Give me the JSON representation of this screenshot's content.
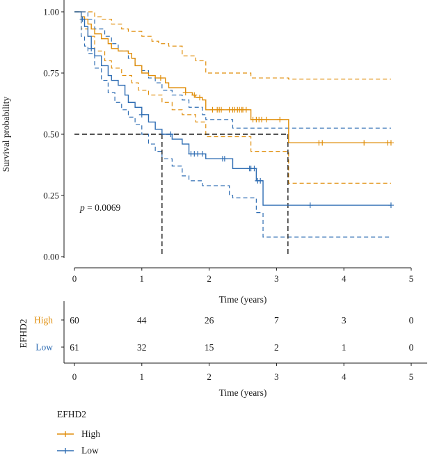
{
  "chart_data": {
    "type": "line",
    "subtype": "kaplan-meier",
    "title": "",
    "xlabel": "Time (years)",
    "ylabel": "Survival probability",
    "xlim": [
      0,
      5
    ],
    "ylim": [
      0,
      1
    ],
    "xticks": [
      "0",
      "1",
      "2",
      "3",
      "4",
      "5"
    ],
    "yticks": [
      "0.00",
      "0.25",
      "0.50",
      "0.75",
      "1.00"
    ],
    "pvalue_prefix": "p",
    "pvalue_text": " = 0.0069",
    "median_line": {
      "y": 0.5,
      "medians": [
        1.3,
        3.17
      ]
    },
    "series": [
      {
        "name": "High",
        "color": "#E08E0B",
        "steps": [
          [
            0,
            1.0
          ],
          [
            0.1,
            0.98
          ],
          [
            0.15,
            0.97
          ],
          [
            0.2,
            0.95
          ],
          [
            0.25,
            0.93
          ],
          [
            0.3,
            0.91
          ],
          [
            0.4,
            0.89
          ],
          [
            0.5,
            0.87
          ],
          [
            0.55,
            0.85
          ],
          [
            0.65,
            0.84
          ],
          [
            0.8,
            0.83
          ],
          [
            0.85,
            0.81
          ],
          [
            0.9,
            0.78
          ],
          [
            1.0,
            0.75
          ],
          [
            1.1,
            0.74
          ],
          [
            1.2,
            0.73
          ],
          [
            1.35,
            0.71
          ],
          [
            1.4,
            0.69
          ],
          [
            1.6,
            0.69
          ],
          [
            1.65,
            0.67
          ],
          [
            1.75,
            0.66
          ],
          [
            1.8,
            0.65
          ],
          [
            1.9,
            0.64
          ],
          [
            1.95,
            0.6
          ],
          [
            2.6,
            0.6
          ],
          [
            2.62,
            0.56
          ],
          [
            3.17,
            0.56
          ],
          [
            3.18,
            0.465
          ],
          [
            4.7,
            0.465
          ]
        ],
        "censor": [
          1.28,
          1.65,
          1.78,
          1.86,
          2.05,
          2.12,
          2.15,
          2.18,
          2.3,
          2.35,
          2.38,
          2.42,
          2.45,
          2.48,
          2.5,
          2.55,
          2.65,
          2.7,
          2.74,
          2.78,
          2.85,
          3.05,
          3.63,
          3.68,
          4.3,
          4.65,
          4.7
        ],
        "upper": [
          [
            0,
            1.0
          ],
          [
            0.1,
            1.0
          ],
          [
            0.25,
            1.0
          ],
          [
            0.3,
            0.98
          ],
          [
            0.4,
            0.97
          ],
          [
            0.55,
            0.95
          ],
          [
            0.7,
            0.93
          ],
          [
            0.8,
            0.92
          ],
          [
            1.0,
            0.9
          ],
          [
            1.15,
            0.88
          ],
          [
            1.25,
            0.87
          ],
          [
            1.4,
            0.86
          ],
          [
            1.6,
            0.82
          ],
          [
            1.8,
            0.8
          ],
          [
            1.95,
            0.75
          ],
          [
            2.6,
            0.75
          ],
          [
            2.62,
            0.73
          ],
          [
            3.17,
            0.73
          ],
          [
            3.18,
            0.725
          ],
          [
            4.7,
            0.725
          ]
        ],
        "lower": [
          [
            0,
            1.0
          ],
          [
            0.1,
            0.93
          ],
          [
            0.2,
            0.9
          ],
          [
            0.3,
            0.84
          ],
          [
            0.45,
            0.8
          ],
          [
            0.55,
            0.77
          ],
          [
            0.7,
            0.74
          ],
          [
            0.85,
            0.71
          ],
          [
            0.95,
            0.68
          ],
          [
            1.1,
            0.66
          ],
          [
            1.3,
            0.63
          ],
          [
            1.45,
            0.6
          ],
          [
            1.6,
            0.58
          ],
          [
            1.8,
            0.55
          ],
          [
            1.95,
            0.49
          ],
          [
            2.6,
            0.49
          ],
          [
            2.62,
            0.43
          ],
          [
            3.17,
            0.43
          ],
          [
            3.18,
            0.3
          ],
          [
            4.7,
            0.3
          ]
        ]
      },
      {
        "name": "Low",
        "color": "#2F6DB3",
        "steps": [
          [
            0,
            1.0
          ],
          [
            0.1,
            0.97
          ],
          [
            0.15,
            0.94
          ],
          [
            0.2,
            0.9
          ],
          [
            0.25,
            0.85
          ],
          [
            0.3,
            0.82
          ],
          [
            0.4,
            0.78
          ],
          [
            0.5,
            0.74
          ],
          [
            0.55,
            0.72
          ],
          [
            0.65,
            0.7
          ],
          [
            0.75,
            0.66
          ],
          [
            0.8,
            0.63
          ],
          [
            0.9,
            0.61
          ],
          [
            1.0,
            0.58
          ],
          [
            1.1,
            0.55
          ],
          [
            1.2,
            0.52
          ],
          [
            1.3,
            0.5
          ],
          [
            1.45,
            0.48
          ],
          [
            1.6,
            0.46
          ],
          [
            1.7,
            0.42
          ],
          [
            1.9,
            0.42
          ],
          [
            1.95,
            0.4
          ],
          [
            2.3,
            0.4
          ],
          [
            2.35,
            0.36
          ],
          [
            2.65,
            0.36
          ],
          [
            2.7,
            0.31
          ],
          [
            2.78,
            0.31
          ],
          [
            2.8,
            0.21
          ],
          [
            4.7,
            0.21
          ]
        ],
        "censor": [
          0.12,
          0.25,
          1.0,
          1.43,
          1.73,
          1.78,
          1.83,
          1.9,
          2.2,
          2.23,
          2.6,
          2.62,
          2.67,
          2.72,
          2.76,
          3.5,
          4.7
        ],
        "upper": [
          [
            0,
            1.0
          ],
          [
            0.1,
            1.0
          ],
          [
            0.2,
            0.97
          ],
          [
            0.3,
            0.93
          ],
          [
            0.45,
            0.9
          ],
          [
            0.55,
            0.87
          ],
          [
            0.65,
            0.84
          ],
          [
            0.8,
            0.81
          ],
          [
            0.9,
            0.78
          ],
          [
            1.0,
            0.76
          ],
          [
            1.1,
            0.73
          ],
          [
            1.2,
            0.71
          ],
          [
            1.3,
            0.68
          ],
          [
            1.45,
            0.66
          ],
          [
            1.6,
            0.64
          ],
          [
            1.7,
            0.61
          ],
          [
            1.9,
            0.58
          ],
          [
            1.95,
            0.56
          ],
          [
            2.3,
            0.56
          ],
          [
            2.35,
            0.525
          ],
          [
            4.7,
            0.525
          ]
        ],
        "lower": [
          [
            0,
            1.0
          ],
          [
            0.1,
            0.9
          ],
          [
            0.15,
            0.86
          ],
          [
            0.2,
            0.83
          ],
          [
            0.3,
            0.77
          ],
          [
            0.4,
            0.72
          ],
          [
            0.5,
            0.67
          ],
          [
            0.6,
            0.63
          ],
          [
            0.7,
            0.6
          ],
          [
            0.8,
            0.57
          ],
          [
            0.9,
            0.54
          ],
          [
            1.0,
            0.5
          ],
          [
            1.1,
            0.46
          ],
          [
            1.2,
            0.43
          ],
          [
            1.3,
            0.4
          ],
          [
            1.45,
            0.37
          ],
          [
            1.6,
            0.33
          ],
          [
            1.7,
            0.31
          ],
          [
            1.9,
            0.29
          ],
          [
            1.95,
            0.29
          ],
          [
            2.3,
            0.25
          ],
          [
            2.35,
            0.24
          ],
          [
            2.65,
            0.24
          ],
          [
            2.7,
            0.18
          ],
          [
            2.8,
            0.08
          ],
          [
            4.7,
            0.08
          ]
        ]
      }
    ]
  },
  "risk_table": {
    "title": "EFHD2",
    "xlabel": "Time (years)",
    "rows": [
      {
        "name": "High",
        "color": "#E08E0B",
        "counts": [
          "60",
          "44",
          "26",
          "7",
          "3",
          "0"
        ]
      },
      {
        "name": "Low",
        "color": "#2F6DB3",
        "counts": [
          "61",
          "32",
          "15",
          "2",
          "1",
          "0"
        ]
      }
    ]
  },
  "legend": {
    "title": "EFHD2",
    "items": [
      {
        "label": "High",
        "color": "#E08E0B"
      },
      {
        "label": "Low",
        "color": "#2F6DB3"
      }
    ]
  }
}
